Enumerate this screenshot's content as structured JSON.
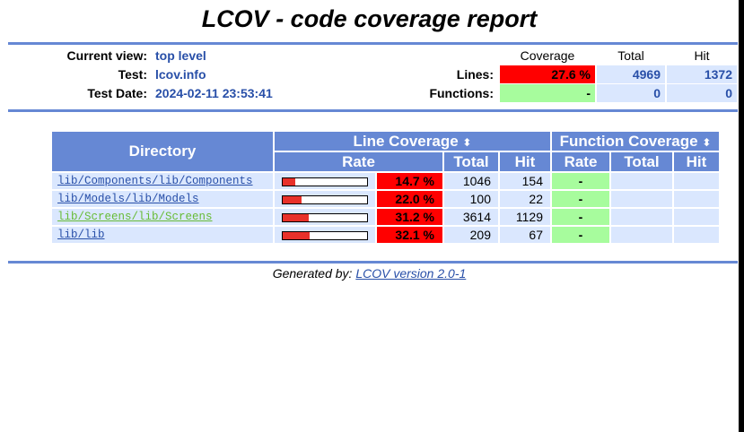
{
  "title": "LCOV - code coverage report",
  "header": {
    "current_view_label": "Current view:",
    "current_view_value": "top level",
    "test_label": "Test:",
    "test_value": "lcov.info",
    "test_date_label": "Test Date:",
    "test_date_value": "2024-02-11 23:53:41"
  },
  "summary": {
    "col_coverage": "Coverage",
    "col_total": "Total",
    "col_hit": "Hit",
    "lines_label": "Lines:",
    "lines_coverage": "27.6 %",
    "lines_total": "4969",
    "lines_hit": "1372",
    "functions_label": "Functions:",
    "functions_coverage": "-",
    "functions_total": "0",
    "functions_hit": "0"
  },
  "table": {
    "directory_header": "Directory",
    "line_coverage_header": "Line Coverage",
    "function_coverage_header": "Function Coverage",
    "sort_icon": "⬍",
    "rate_header": "Rate",
    "total_header": "Total",
    "hit_header": "Hit",
    "f_rate_header": "Rate",
    "f_total_header": "Total",
    "f_hit_header": "Hit",
    "rows": [
      {
        "dir": "lib/Components/lib/Components",
        "percent": "14.7 %",
        "fraction": 0.147,
        "total": "1046",
        "hit": "154",
        "frate": "-",
        "ftotal": "",
        "fhit": ""
      },
      {
        "dir": "lib/Models/lib/Models",
        "percent": "22.0 %",
        "fraction": 0.22,
        "total": "100",
        "hit": "22",
        "frate": "-",
        "ftotal": "",
        "fhit": ""
      },
      {
        "dir": "lib/Screens/lib/Screens",
        "percent": "31.2 %",
        "fraction": 0.312,
        "total": "3614",
        "hit": "1129",
        "frate": "-",
        "ftotal": "",
        "fhit": ""
      },
      {
        "dir": "lib/lib",
        "percent": "32.1 %",
        "fraction": 0.321,
        "total": "209",
        "hit": "67",
        "frate": "-",
        "ftotal": "",
        "fhit": ""
      }
    ]
  },
  "footer": {
    "prefix": "Generated by: ",
    "link_text": "LCOV version 2.0-1"
  },
  "colors": {
    "header_blue": "#6688d4",
    "cell_blue": "#dae7fe",
    "low_red": "#ff0000",
    "none_green": "#a7fc9d",
    "link_blue": "#284fa8"
  }
}
